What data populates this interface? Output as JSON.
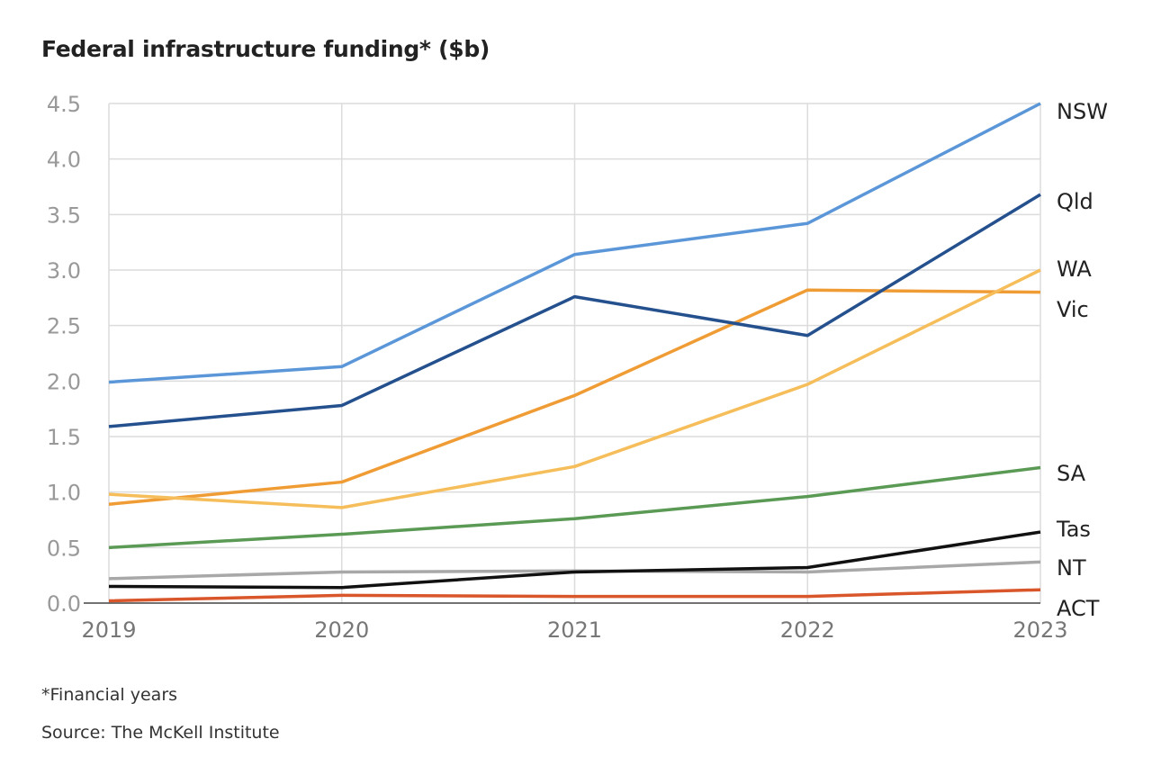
{
  "title": "Federal infrastructure funding* ($b)",
  "footnote": "*Financial years",
  "source": "Source: The McKell Institute",
  "chart_data": {
    "type": "line",
    "title": "Federal infrastructure funding* ($b)",
    "xlabel": "",
    "ylabel": "",
    "x": [
      "2019",
      "2020",
      "2021",
      "2022",
      "2023"
    ],
    "ylim": [
      0,
      4.5
    ],
    "yticks": [
      "0.0",
      "0.5",
      "1.0",
      "1.5",
      "2.0",
      "2.5",
      "3.0",
      "3.5",
      "4.0",
      "4.5"
    ],
    "grid": true,
    "legend": "direct labels at right",
    "series": [
      {
        "name": "NSW",
        "color": "#5b97d8",
        "values": [
          1.99,
          2.13,
          3.14,
          3.42,
          4.5
        ]
      },
      {
        "name": "Qld",
        "color": "#24508e",
        "values": [
          1.59,
          1.78,
          2.76,
          2.41,
          3.68
        ]
      },
      {
        "name": "WA",
        "color": "#f6be5a",
        "values": [
          0.98,
          0.86,
          1.23,
          1.97,
          3.0
        ]
      },
      {
        "name": "Vic",
        "color": "#f09c35",
        "values": [
          0.89,
          1.09,
          1.87,
          2.82,
          2.8
        ]
      },
      {
        "name": "SA",
        "color": "#5a9a55",
        "values": [
          0.5,
          0.62,
          0.76,
          0.96,
          1.22
        ]
      },
      {
        "name": "Tas",
        "color": "#111111",
        "values": [
          0.15,
          0.14,
          0.28,
          0.32,
          0.64
        ]
      },
      {
        "name": "NT",
        "color": "#a8a8a8",
        "values": [
          0.22,
          0.28,
          0.29,
          0.28,
          0.37
        ]
      },
      {
        "name": "ACT",
        "color": "#d9562b",
        "values": [
          0.02,
          0.07,
          0.06,
          0.06,
          0.12
        ]
      }
    ]
  }
}
